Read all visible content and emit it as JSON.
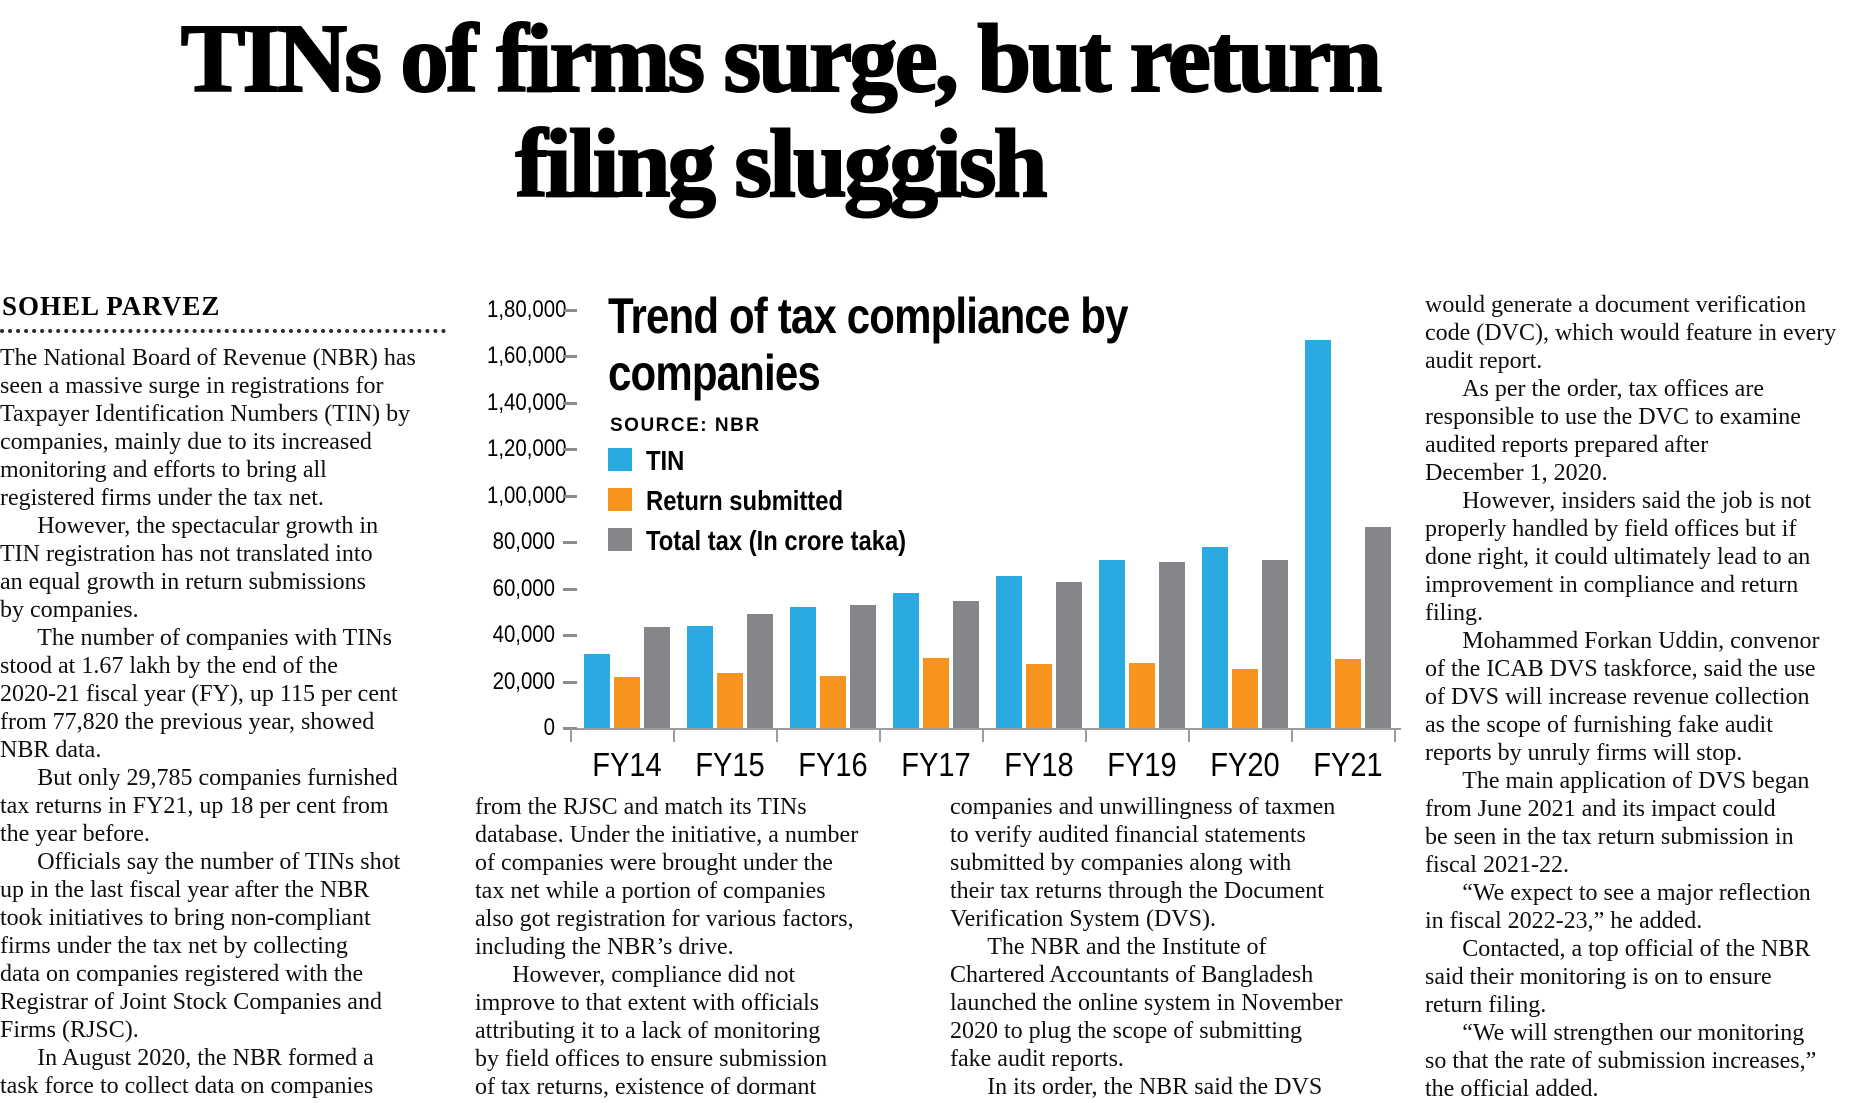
{
  "headline": "TINs of firms surge, but return\nfiling sluggish",
  "byline": "SOHEL PARVEZ",
  "article": {
    "col1": [
      "The National Board of Revenue (NBR) has\nseen a massive surge in registrations for\nTaxpayer Identification Numbers (TIN) by\ncompanies, mainly due to its increased\nmonitoring and efforts to bring all\nregistered firms under the tax net.",
      "However, the spectacular growth in\nTIN registration has not translated into\nan equal growth in return submissions\nby companies.",
      "The number of companies with TINs\nstood at 1.67 lakh by the end of the\n2020-21 fiscal year (FY), up 115 per cent\nfrom 77,820 the previous year, showed\nNBR data.",
      "But only 29,785 companies furnished\ntax returns in FY21, up 18 per cent from\nthe year before.",
      "Officials say the number of TINs shot\nup in the last fiscal year after the NBR\ntook initiatives to bring non-compliant\nfirms under the tax net by collecting\ndata on companies registered with the\nRegistrar of Joint Stock Companies and\nFirms (RJSC).",
      "In August 2020, the NBR formed a\ntask force to collect data on companies"
    ],
    "col2": [
      "from the RJSC and match its TINs\ndatabase. Under the initiative, a number\nof companies were brought under the\ntax net while a portion of companies\nalso got registration for various factors,\nincluding the NBR’s drive.",
      "However, compliance did not\nimprove to that extent with officials\nattributing it to a lack of monitoring\nby field offices to ensure submission\nof tax returns, existence of dormant"
    ],
    "col3": [
      "companies and unwillingness of taxmen\nto verify audited financial statements\nsubmitted by companies along with\ntheir tax returns through the Document\nVerification System (DVS).",
      "The NBR and the Institute of\nChartered Accountants of Bangladesh\nlaunched the online system in November\n2020 to plug the scope of submitting\nfake audit reports.",
      "In its order, the NBR said the DVS"
    ],
    "col4": [
      "would generate a document verification\ncode (DVC), which would feature in every\naudit report.",
      "As per the order, tax offices are\nresponsible to use the DVC to examine\naudited reports prepared after\nDecember 1, 2020.",
      "However, insiders said the job is not\nproperly handled by field offices but if\ndone right, it could ultimately lead to an\nimprovement in compliance and return\nfiling.",
      "Mohammed Forkan Uddin, convenor\nof the ICAB DVS taskforce, said the use\nof DVS will increase revenue collection\nas the scope of furnishing fake audit\nreports by unruly firms will stop.",
      "The main application of DVS began\nfrom June 2021 and its impact could\nbe seen in the tax return submission in\nfiscal 2021-22.",
      "“We expect to see a major reflection\nin fiscal 2022-23,” he added.",
      "Contacted, a top official of the NBR\nsaid their monitoring is on to ensure\nreturn filing.",
      "“We will strengthen our monitoring\nso that the rate of submission increases,”\nthe official added."
    ]
  },
  "chart": {
    "title": "Trend of tax compliance by\ncompanies",
    "source": "SOURCE: NBR"
  },
  "chart_data": {
    "type": "bar",
    "title": "Trend of tax compliance by companies",
    "source": "SOURCE: NBR",
    "categories": [
      "FY14",
      "FY15",
      "FY16",
      "FY17",
      "FY18",
      "FY19",
      "FY20",
      "FY21"
    ],
    "series": [
      {
        "name": "TIN",
        "color": "#29ABE2",
        "values": [
          32000,
          44000,
          52000,
          58000,
          65500,
          72500,
          77820,
          167000
        ]
      },
      {
        "name": "Return submitted",
        "color": "#F7941E",
        "values": [
          22000,
          23500,
          22500,
          30000,
          27500,
          28000,
          25242,
          29785
        ]
      },
      {
        "name": "Total tax (In crore taka)",
        "color": "#848689",
        "values": [
          43500,
          49000,
          53000,
          54500,
          63000,
          71500,
          72500,
          86500
        ]
      }
    ],
    "ylim": [
      0,
      180000
    ],
    "y_ticks": [
      "1,80,000",
      "1,60,000",
      "1,40,000",
      "1,20,000",
      "1,00,000",
      "80,000",
      "60,000",
      "40,000",
      "20,000",
      "0"
    ],
    "grid": false,
    "legend_position": "upper-left"
  }
}
